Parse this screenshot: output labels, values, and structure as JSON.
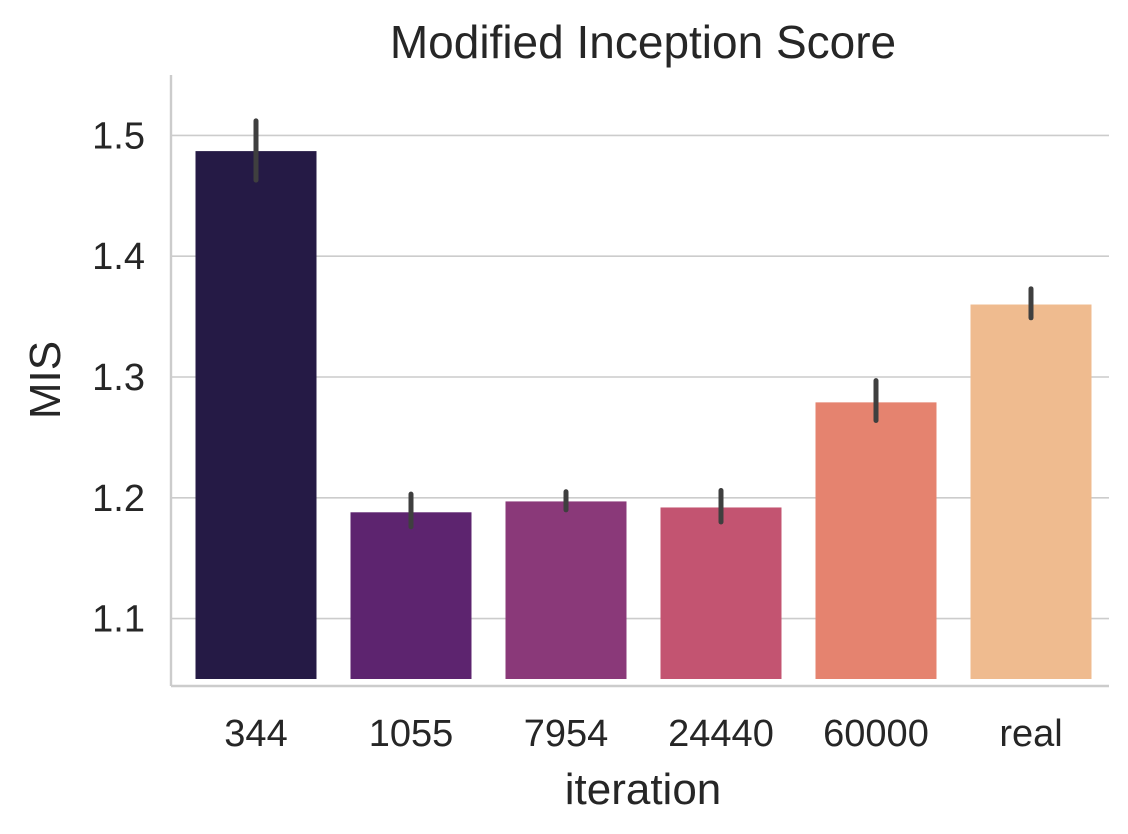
{
  "chart_data": {
    "type": "bar",
    "title": "Modified Inception Score",
    "xlabel": "iteration",
    "ylabel": "MIS",
    "categories": [
      "344",
      "1055",
      "7954",
      "24440",
      "60000",
      "real"
    ],
    "values": [
      1.487,
      1.188,
      1.197,
      1.192,
      1.279,
      1.36
    ],
    "errors": [
      [
        1.463,
        1.512
      ],
      [
        1.176,
        1.203
      ],
      [
        1.19,
        1.205
      ],
      [
        1.18,
        1.206
      ],
      [
        1.264,
        1.297
      ],
      [
        1.349,
        1.373
      ]
    ],
    "colors": [
      "#251a45",
      "#5d246f",
      "#8a3979",
      "#c35471",
      "#e5836f",
      "#efbb8f"
    ],
    "error_color": "#3f3f3f",
    "yticks": [
      "1.1",
      "1.2",
      "1.3",
      "1.4",
      "1.5"
    ],
    "ylim": [
      1.05,
      1.55
    ],
    "grid": "horizontal"
  }
}
